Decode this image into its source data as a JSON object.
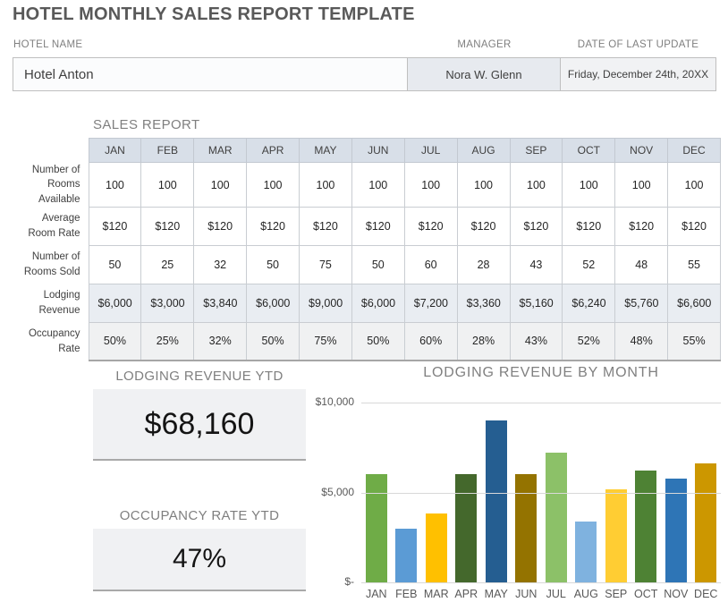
{
  "title": "HOTEL MONTHLY SALES REPORT TEMPLATE",
  "header": {
    "hotel_name": {
      "label": "HOTEL NAME",
      "value": "Hotel Anton"
    },
    "manager": {
      "label": "MANAGER",
      "value": "Nora W. Glenn"
    },
    "last_update": {
      "label": "DATE OF LAST UPDATE",
      "value": "Friday, December 24th, 20XX"
    }
  },
  "sales_report": {
    "title": "SALES REPORT",
    "months": [
      "JAN",
      "FEB",
      "MAR",
      "APR",
      "MAY",
      "JUN",
      "JUL",
      "AUG",
      "SEP",
      "OCT",
      "NOV",
      "DEC"
    ],
    "rows": [
      {
        "label": "Number of Rooms Available",
        "format": "plain",
        "bg": "white",
        "values": [
          "100",
          "100",
          "100",
          "100",
          "100",
          "100",
          "100",
          "100",
          "100",
          "100",
          "100",
          "100"
        ]
      },
      {
        "label": "Average Room Rate",
        "format": "plain",
        "bg": "white",
        "values": [
          "$120",
          "$120",
          "$120",
          "$120",
          "$120",
          "$120",
          "$120",
          "$120",
          "$120",
          "$120",
          "$120",
          "$120"
        ]
      },
      {
        "label": "Number of Rooms Sold",
        "format": "plain",
        "bg": "white",
        "values": [
          "50",
          "25",
          "32",
          "50",
          "75",
          "50",
          "60",
          "28",
          "43",
          "52",
          "48",
          "55"
        ]
      },
      {
        "label": "Lodging Revenue",
        "format": "accounting",
        "bg": "blue",
        "values": [
          "6,000",
          "3,000",
          "3,840",
          "6,000",
          "9,000",
          "6,000",
          "7,200",
          "3,360",
          "5,160",
          "6,240",
          "5,760",
          "6,600"
        ]
      },
      {
        "label": "Occupancy Rate",
        "format": "plain",
        "bg": "gray",
        "values": [
          "50%",
          "25%",
          "32%",
          "50%",
          "75%",
          "50%",
          "60%",
          "28%",
          "43%",
          "52%",
          "48%",
          "55%"
        ]
      }
    ]
  },
  "ytd": {
    "lodging_revenue": {
      "title": "LODGING REVENUE YTD",
      "value": "$68,160"
    },
    "occupancy_rate": {
      "title": "OCCUPANCY RATE YTD",
      "value": "47%"
    }
  },
  "chart_data": {
    "type": "bar",
    "title": "LODGING REVENUE BY MONTH",
    "categories": [
      "JAN",
      "FEB",
      "MAR",
      "APR",
      "MAY",
      "JUN",
      "JUL",
      "AUG",
      "SEP",
      "OCT",
      "NOV",
      "DEC"
    ],
    "values": [
      6000,
      3000,
      3840,
      6000,
      9000,
      6000,
      7200,
      3360,
      5160,
      6240,
      5760,
      6600
    ],
    "bar_colors": [
      "#6FAC47",
      "#5B9BD5",
      "#FFC000",
      "#44682C",
      "#255E91",
      "#947300",
      "#8CC168",
      "#7FB2DF",
      "#FFCD33",
      "#4E8234",
      "#2E75B6",
      "#CC9700"
    ],
    "xlabel": "",
    "ylabel": "",
    "ylim": [
      0,
      10000
    ],
    "y_ticks": [
      {
        "label": "$10,000",
        "value": 10000
      },
      {
        "label": "$5,000",
        "value": 5000
      },
      {
        "label": "$-",
        "value": 0
      }
    ],
    "grid": true,
    "legend": false
  },
  "colors": {
    "title_text": "#595959",
    "section_heading": "#7F7F7F",
    "table_header_bg": "#D8DFE8",
    "revenue_row_bg": "#E9EDF2",
    "occupancy_row_bg": "#F0F1F2",
    "ytd_box_bg": "#F0F1F3",
    "cell_border": "#C9CDD2"
  }
}
